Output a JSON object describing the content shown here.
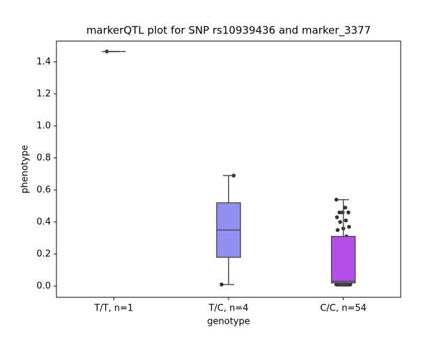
{
  "chart_data": {
    "type": "box",
    "title": "markerQTL plot for SNP rs10939436 and marker_3377",
    "x_label": "genotype",
    "y_label": "phenotype",
    "categories": [
      "T/T, n=1",
      "T/C, n=4",
      "C/C, n=54"
    ],
    "ylim": [
      -0.07,
      1.53
    ],
    "yticks": [
      {
        "value": 0,
        "label": "0.0"
      },
      0.2,
      0.4,
      0.6,
      0.8,
      {
        "value": 1,
        "label": "1.0"
      },
      1.2,
      1.4
    ],
    "point_color": "#333333",
    "boxes": [
      {
        "whislo": 1.465,
        "q1": 1.465,
        "med": 1.465,
        "q3": 1.465,
        "whishi": 1.465,
        "color": "#7f7fe8",
        "points": [
          1.465
        ]
      },
      {
        "whislo": 0.01,
        "q1": 0.18,
        "med": 0.35,
        "q3": 0.52,
        "whishi": 0.69,
        "color": "#9190f0",
        "points": [
          0.01,
          0.24,
          0.46,
          0.69
        ]
      },
      {
        "whislo": 0.01,
        "q1": 0.02,
        "med": 0.03,
        "q3": 0.31,
        "whishi": 0.54,
        "color": "#b44ee8",
        "points": [
          0.54,
          0.49,
          0.46,
          0.46,
          0.46,
          0.43,
          0.41,
          0.4,
          0.37,
          0.36,
          0.35,
          0.31,
          0.27,
          0.27,
          0.26,
          0.17,
          0.12,
          0.09,
          0.08,
          0.08,
          0.06,
          0.05,
          0.04,
          0.04,
          0.03,
          0.03,
          0.03,
          0.02,
          0.02,
          0.02,
          0.02,
          0.02,
          0.02,
          0.02,
          0.01,
          0.01,
          0.01,
          0.01,
          0.01,
          0.01,
          0.01,
          0.01,
          0.01,
          0.01,
          0.01,
          0.01,
          0.01,
          0.01,
          0.01,
          0.01,
          0.01,
          0.01,
          0.01,
          0.01
        ]
      }
    ]
  }
}
